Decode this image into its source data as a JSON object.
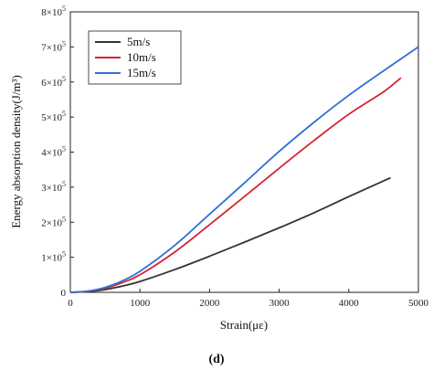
{
  "chart_data": {
    "type": "line",
    "xlabel": "Strain(με)",
    "ylabel": "Energy absorption density(J/m³)",
    "caption": "(d)",
    "xlim": [
      0,
      5000
    ],
    "ylim": [
      0,
      800000
    ],
    "x_ticks": [
      0,
      1000,
      2000,
      3000,
      4000,
      5000
    ],
    "x_tick_labels": [
      "0",
      "1000",
      "2000",
      "3000",
      "4000",
      "5000"
    ],
    "y_ticks": [
      0,
      100000,
      200000,
      300000,
      400000,
      500000,
      600000,
      700000,
      800000
    ],
    "y_tick_labels": [
      {
        "mant": "0",
        "exp": ""
      },
      {
        "mant": "1×10",
        "exp": "5"
      },
      {
        "mant": "2×10",
        "exp": "5"
      },
      {
        "mant": "3×10",
        "exp": "5"
      },
      {
        "mant": "4×10",
        "exp": "5"
      },
      {
        "mant": "5×10",
        "exp": "5"
      },
      {
        "mant": "6×10",
        "exp": "5"
      },
      {
        "mant": "7×10",
        "exp": "5"
      },
      {
        "mant": "8×10",
        "exp": "5"
      }
    ],
    "grid": false,
    "legend_position": "top-left",
    "series": [
      {
        "name": "5m/s",
        "color": "#333333",
        "x": [
          0,
          250,
          500,
          750,
          1000,
          1500,
          2000,
          2500,
          3000,
          3500,
          4000,
          4600
        ],
        "y": [
          0,
          2000,
          8000,
          18000,
          31000,
          65000,
          103000,
          143000,
          184000,
          227000,
          273000,
          327000
        ]
      },
      {
        "name": "10m/s",
        "color": "#d62432",
        "x": [
          0,
          250,
          500,
          750,
          1000,
          1500,
          2000,
          2500,
          3000,
          3500,
          4000,
          4500,
          4750
        ],
        "y": [
          0,
          3000,
          12000,
          28000,
          50000,
          115000,
          193000,
          273000,
          354000,
          433000,
          508000,
          572000,
          612000
        ]
      },
      {
        "name": "15m/s",
        "color": "#2f6fd6",
        "x": [
          0,
          250,
          500,
          750,
          1000,
          1500,
          2000,
          2500,
          3000,
          3500,
          4000,
          4500,
          5000
        ],
        "y": [
          0,
          3500,
          14000,
          33000,
          60000,
          134000,
          223000,
          312000,
          402000,
          485000,
          562000,
          632000,
          700000
        ]
      }
    ]
  }
}
